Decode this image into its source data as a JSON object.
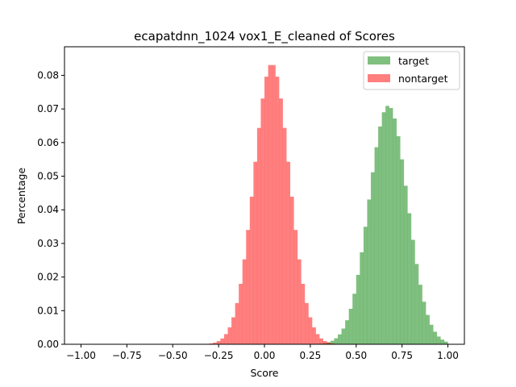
{
  "chart_data": {
    "type": "histogram",
    "title": "ecapatdnn_1024 vox1_E_cleaned of Scores",
    "xlabel": "Score",
    "ylabel": "Percentage",
    "xlim": [
      -1.09,
      1.09
    ],
    "ylim": [
      0,
      0.0885
    ],
    "xticks": [
      -1.0,
      -0.75,
      -0.5,
      -0.25,
      0.0,
      0.25,
      0.5,
      0.75,
      1.0
    ],
    "xtick_labels": [
      "−1.00",
      "−0.75",
      "−0.50",
      "−0.25",
      "0.00",
      "0.25",
      "0.50",
      "0.75",
      "1.00"
    ],
    "yticks": [
      0.0,
      0.01,
      0.02,
      0.03,
      0.04,
      0.05,
      0.06,
      0.07,
      0.08
    ],
    "ytick_labels": [
      "0.00",
      "0.01",
      "0.02",
      "0.03",
      "0.04",
      "0.05",
      "0.06",
      "0.07",
      "0.08"
    ],
    "grid": false,
    "legend_position": "top-right",
    "bins": {
      "start": -1.0,
      "end": 1.0,
      "count": 100
    },
    "series": [
      {
        "name": "target",
        "color": "#008000",
        "alpha": 0.5,
        "density": {
          "mean": 0.675,
          "sd": 0.105,
          "peak": 0.071
        }
      },
      {
        "name": "nontarget",
        "color": "#ff0000",
        "alpha": 0.5,
        "density": {
          "mean": 0.04,
          "sd": 0.097,
          "peak": 0.0835
        }
      }
    ]
  }
}
